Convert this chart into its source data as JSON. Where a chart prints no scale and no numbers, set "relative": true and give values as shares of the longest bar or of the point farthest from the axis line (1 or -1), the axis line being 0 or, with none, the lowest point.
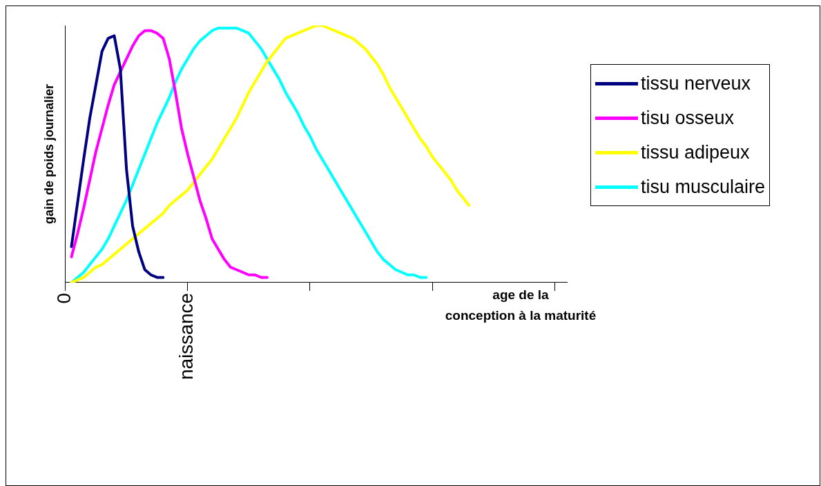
{
  "chart_data": {
    "type": "line",
    "relative": true,
    "ylabel": "gain de poids journalier",
    "xlabel": "age de la\nconception à la maturité",
    "grid": false,
    "legend": "right",
    "marker": "none",
    "line_style": "solid",
    "categories": [
      "0",
      null,
      null,
      null,
      null,
      null,
      null,
      null,
      null,
      null,
      null,
      null,
      null,
      null,
      null,
      null,
      null,
      null,
      null,
      null,
      "naissance",
      null,
      null,
      null,
      null,
      null,
      null,
      null,
      null,
      null,
      null,
      null,
      null,
      null,
      null,
      null,
      null,
      null,
      null,
      null,
      null,
      null,
      null,
      null,
      null,
      null,
      null,
      null,
      null,
      null,
      null,
      null,
      null,
      null,
      null,
      null,
      null,
      null,
      null,
      null,
      null,
      null,
      null,
      null,
      null,
      null,
      null,
      null,
      null,
      null,
      null,
      null,
      null,
      null,
      null,
      null,
      null,
      null,
      null,
      null,
      null,
      null,
      null
    ],
    "series": [
      {
        "name": "tissu nerveux",
        "color": "#000080",
        "values": [
          null,
          0.14,
          0.31,
          0.48,
          0.64,
          0.77,
          0.9,
          0.95,
          0.96,
          0.83,
          0.44,
          0.22,
          0.12,
          0.05,
          0.03,
          0.02,
          0.02,
          null,
          null,
          null,
          null,
          null,
          null,
          null,
          null,
          null,
          null,
          null,
          null,
          null,
          null,
          null,
          null,
          null,
          null,
          null,
          null,
          null,
          null,
          null,
          null,
          null,
          null,
          null,
          null,
          null,
          null,
          null,
          null,
          null,
          null,
          null,
          null,
          null,
          null,
          null,
          null,
          null,
          null,
          null,
          null,
          null,
          null,
          null,
          null,
          null,
          null,
          null,
          null,
          null,
          null,
          null,
          null,
          null,
          null,
          null,
          null,
          null,
          null,
          null,
          null,
          null,
          null
        ]
      },
      {
        "name": "tisu osseux",
        "color": "#ff00ff",
        "values": [
          null,
          0.1,
          0.19,
          0.29,
          0.4,
          0.51,
          0.6,
          0.69,
          0.77,
          0.82,
          0.87,
          0.92,
          0.96,
          0.98,
          0.98,
          0.97,
          0.95,
          0.87,
          0.74,
          0.6,
          0.5,
          0.41,
          0.32,
          0.25,
          0.17,
          0.13,
          0.09,
          0.06,
          0.05,
          0.04,
          0.03,
          0.03,
          0.02,
          0.02,
          null,
          null,
          null,
          null,
          null,
          null,
          null,
          null,
          null,
          null,
          null,
          null,
          null,
          null,
          null,
          null,
          null,
          null,
          null,
          null,
          null,
          null,
          null,
          null,
          null,
          null,
          null,
          null,
          null,
          null,
          null,
          null,
          null,
          null,
          null,
          null,
          null,
          null,
          null,
          null,
          null,
          null,
          null,
          null,
          null,
          null,
          null,
          null,
          null
        ]
      },
      {
        "name": "tissu adipeux",
        "color": "#ffff00",
        "values": [
          null,
          0,
          0.01,
          0.02,
          0.04,
          0.06,
          0.07,
          0.09,
          0.11,
          0.13,
          0.15,
          0.17,
          0.19,
          0.21,
          0.23,
          0.25,
          0.27,
          0.3,
          0.32,
          0.34,
          0.36,
          0.39,
          0.42,
          0.45,
          0.48,
          0.52,
          0.56,
          0.6,
          0.64,
          0.69,
          0.74,
          0.78,
          0.82,
          0.86,
          0.89,
          0.92,
          0.95,
          0.96,
          0.97,
          0.98,
          0.99,
          1,
          1,
          0.99,
          0.98,
          0.97,
          0.96,
          0.95,
          0.93,
          0.91,
          0.88,
          0.85,
          0.81,
          0.76,
          0.72,
          0.68,
          0.64,
          0.6,
          0.56,
          0.53,
          0.49,
          0.46,
          0.43,
          0.4,
          0.36,
          0.33,
          0.3,
          null,
          null,
          null,
          null,
          null,
          null,
          null,
          null,
          null,
          null,
          null,
          null,
          null,
          null,
          null,
          null
        ]
      },
      {
        "name": "tisu musculaire",
        "color": "#00ffff",
        "values": [
          null,
          0,
          0.02,
          0.04,
          0.07,
          0.1,
          0.13,
          0.17,
          0.22,
          0.27,
          0.32,
          0.38,
          0.44,
          0.5,
          0.56,
          0.62,
          0.67,
          0.72,
          0.78,
          0.83,
          0.87,
          0.91,
          0.94,
          0.96,
          0.98,
          0.99,
          0.99,
          0.99,
          0.99,
          0.98,
          0.97,
          0.94,
          0.91,
          0.87,
          0.83,
          0.79,
          0.74,
          0.7,
          0.66,
          0.61,
          0.57,
          0.52,
          0.48,
          0.44,
          0.4,
          0.36,
          0.32,
          0.28,
          0.24,
          0.2,
          0.16,
          0.12,
          0.09,
          0.07,
          0.05,
          0.04,
          0.03,
          0.03,
          0.02,
          0.02,
          null,
          null,
          null,
          null,
          null,
          null,
          null,
          null,
          null,
          null,
          null,
          null,
          null,
          null,
          null,
          null,
          null,
          null,
          null,
          null,
          null,
          null,
          null
        ]
      }
    ]
  }
}
